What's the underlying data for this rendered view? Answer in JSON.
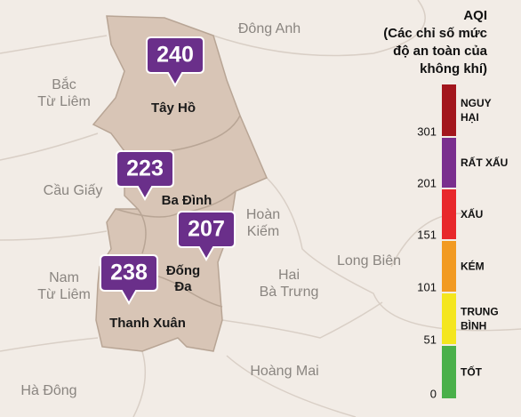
{
  "map": {
    "districts": [
      {
        "lines": [
          "Đông Anh"
        ]
      },
      {
        "lines": [
          "Bắc",
          "Từ Liêm"
        ]
      },
      {
        "lines": [
          "Cầu Giấy"
        ]
      },
      {
        "lines": [
          "Hoàn",
          "Kiếm"
        ]
      },
      {
        "lines": [
          "Nam",
          "Từ Liêm"
        ]
      },
      {
        "lines": [
          "Long Biên"
        ]
      },
      {
        "lines": [
          "Hai",
          "Bà Trưng"
        ]
      },
      {
        "lines": [
          "Hoàng Mai"
        ]
      },
      {
        "lines": [
          "Hà Đông"
        ]
      }
    ],
    "markers": [
      {
        "aqi": "240",
        "district": [
          "Tây Hồ"
        ]
      },
      {
        "aqi": "223",
        "district": [
          "Ba Đình"
        ]
      },
      {
        "aqi": "207",
        "district": [
          "Đống",
          "Đa"
        ]
      },
      {
        "aqi": "238",
        "district": [
          "Thanh Xuân"
        ]
      }
    ]
  },
  "legend": {
    "title": [
      "AQI",
      "(Các chỉ số mức",
      "độ an toàn của",
      "không khí)"
    ],
    "levels": [
      {
        "label": [
          "NGUY",
          "HẠI"
        ],
        "min": "301",
        "color": "#a3161d"
      },
      {
        "label": [
          "RẤT XẤU"
        ],
        "min": "201",
        "color": "#7a2e8e"
      },
      {
        "label": [
          "XẤU"
        ],
        "min": "151",
        "color": "#e8272b"
      },
      {
        "label": [
          "KÉM"
        ],
        "min": "101",
        "color": "#f29a22"
      },
      {
        "label": [
          "TRUNG",
          "BÌNH"
        ],
        "min": "51",
        "color": "#f4e61f"
      },
      {
        "label": [
          "TỐT"
        ],
        "min": "0",
        "color": "#4ab04a"
      }
    ]
  }
}
